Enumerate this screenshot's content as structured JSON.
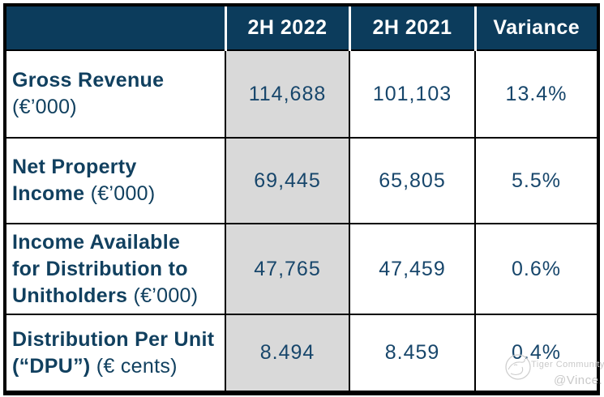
{
  "colors": {
    "header_bg": "#0c3c5c",
    "header_text": "#ffffff",
    "metric_text": "#11405f",
    "value_text": "#17466b",
    "highlight_column_bg": "#d9d9d9",
    "border": "#000000",
    "watermark": "#c9c9c9"
  },
  "table": {
    "columns": [
      "",
      "2H 2022",
      "2H 2021",
      "Variance"
    ],
    "rows": [
      {
        "metric_lines": [
          {
            "bold": "Gross Revenue",
            "regular": ""
          },
          {
            "bold": "",
            "regular": "(€’000)"
          }
        ],
        "values": [
          "114,688",
          "101,103",
          "13.4%"
        ]
      },
      {
        "metric_lines": [
          {
            "bold": "Net Property",
            "regular": ""
          },
          {
            "bold": "Income",
            "regular": " (€’000)"
          }
        ],
        "values": [
          "69,445",
          "65,805",
          "5.5%"
        ]
      },
      {
        "metric_lines": [
          {
            "bold": "Income Available",
            "regular": ""
          },
          {
            "bold": "for Distribution to",
            "regular": ""
          },
          {
            "bold": "Unitholders",
            "regular": " (€’000)"
          }
        ],
        "values": [
          "47,765",
          "47,459",
          "0.6%"
        ]
      },
      {
        "metric_lines": [
          {
            "bold": "Distribution Per Unit",
            "regular": ""
          },
          {
            "bold": "(“DPU”)",
            "regular": " (€ cents)"
          }
        ],
        "values": [
          "8.494",
          "8.459",
          "0.4%"
        ]
      }
    ]
  },
  "watermark": {
    "brand": "Tiger Community",
    "handle": "@Vince.",
    "logo": "tiger-logo"
  }
}
